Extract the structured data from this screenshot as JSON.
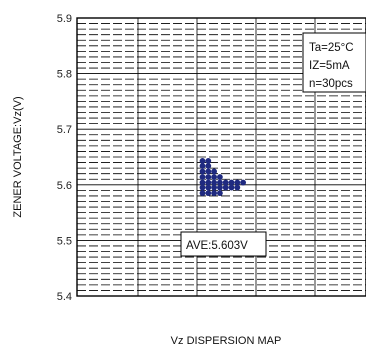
{
  "chart_data": {
    "type": "scatter",
    "title": "",
    "xlabel": "Vz DISPERSION MAP",
    "ylabel": "ZENER VOLTAGE:Vz(V)",
    "ylim": [
      5.4,
      5.9
    ],
    "yticks": [
      "5.4",
      "5.5",
      "5.6",
      "5.7",
      "5.8",
      "5.9"
    ],
    "grid": true,
    "legend": [
      "Ta=25°C",
      "IZ=5mA",
      "n=30pcs"
    ],
    "annotation": "AVE:5.603V",
    "dot_color": "#1f2a80",
    "columns": [
      {
        "column": 1,
        "y": [
          5.643,
          5.634,
          5.624,
          5.614,
          5.604,
          5.595,
          5.585
        ]
      },
      {
        "column": 2,
        "y": [
          5.643,
          5.634,
          5.624,
          5.614,
          5.604,
          5.595,
          5.585
        ]
      },
      {
        "column": 3,
        "y": [
          5.624,
          5.614,
          5.604,
          5.595,
          5.585
        ]
      },
      {
        "column": 4,
        "y": [
          5.614,
          5.604,
          5.595,
          5.585
        ]
      },
      {
        "column": 5,
        "y": [
          5.604,
          5.595
        ]
      },
      {
        "column": 6,
        "y": [
          5.604,
          5.595
        ]
      },
      {
        "column": 7,
        "y": [
          5.604,
          5.595
        ]
      },
      {
        "column": 8,
        "y": [
          5.604
        ]
      }
    ]
  }
}
